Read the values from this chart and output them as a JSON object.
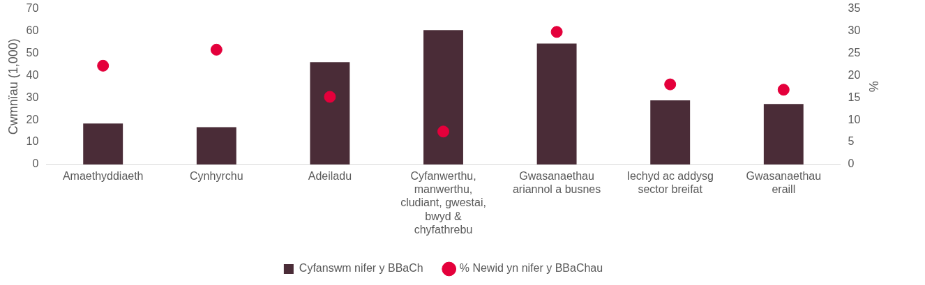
{
  "chart_data": {
    "type": "bar",
    "ylabel": "Cwmnïau (1,000)",
    "y2label": "%",
    "categories": [
      "Amaethyddiaeth",
      "Cynhyrchu",
      "Adeiladu",
      "Cyfanwerthu, manwerthu, cludiant, gwestai, bwyd & chyfathrebu",
      "Gwasanaethau ariannol a busnes",
      "Iechyd ac addysg sector breifat",
      "Gwasanaethau eraill"
    ],
    "series": [
      {
        "name": "Cyfanswm nifer y BBaCh",
        "type": "bar",
        "color": "#4a2c37",
        "values": [
          18.4,
          16.8,
          46,
          60.4,
          54.4,
          28.8,
          27.2
        ]
      },
      {
        "name": "% Newid yn nifer y BBaChau",
        "type": "scatter",
        "axis": "y2",
        "color": "#e4003b",
        "marker": "circle",
        "x": [
          "Amaethyddiaeth",
          "Cynhyrchu",
          "Adeiladu",
          "Cyfanwerthu, manwerthu, cludiant, gwestai, bwyd & chyfathrebu",
          "Gwasanaethau ariannol a busnes",
          "Iechyd ac addysg sector breifat",
          "Gwasanaethau eraill"
        ],
        "values": [
          22.2,
          25.8,
          15.2,
          7.4,
          29.8,
          18,
          16.8
        ]
      }
    ],
    "ylim": [
      0,
      70
    ],
    "yticks": [
      0,
      10,
      20,
      30,
      40,
      50,
      60,
      70
    ],
    "y2lim": [
      0,
      35
    ],
    "y2ticks": [
      0,
      5,
      10,
      15,
      20,
      25,
      30,
      35
    ],
    "grid": false,
    "legend": "bottom"
  }
}
